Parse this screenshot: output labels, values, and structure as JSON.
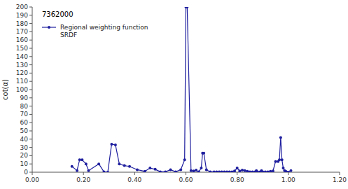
{
  "chart_data": {
    "type": "line",
    "annotation": "7362000",
    "y_label": "cot(α)",
    "legend": "upper left",
    "grid": false,
    "marker": "circle",
    "x": [
      0.155,
      0.175,
      0.185,
      0.195,
      0.21,
      0.22,
      0.26,
      0.28,
      0.295,
      0.31,
      0.325,
      0.34,
      0.36,
      0.38,
      0.41,
      0.44,
      0.46,
      0.48,
      0.5,
      0.52,
      0.54,
      0.56,
      0.58,
      0.595,
      0.6,
      0.605,
      0.62,
      0.63,
      0.64,
      0.65,
      0.66,
      0.665,
      0.67,
      0.68,
      0.695,
      0.71,
      0.72,
      0.73,
      0.74,
      0.75,
      0.76,
      0.77,
      0.78,
      0.79,
      0.8,
      0.81,
      0.82,
      0.83,
      0.84,
      0.85,
      0.86,
      0.87,
      0.875,
      0.88,
      0.89,
      0.895,
      0.9,
      0.91,
      0.92,
      0.93,
      0.94,
      0.95,
      0.96,
      0.965,
      0.97,
      0.975,
      0.98,
      0.985,
      0.99,
      0.995,
      1.0,
      1.01
    ],
    "series": [
      {
        "name": "Regional weighting function\nSRDF",
        "color": "#1f1f9f",
        "values": [
          7.0,
          2.0,
          15.0,
          15.0,
          10.0,
          2.0,
          10.0,
          0.5,
          0.0,
          34.0,
          33.0,
          10.0,
          8.0,
          7.0,
          3.0,
          1.0,
          5.0,
          3.5,
          0.5,
          0.5,
          3.0,
          0.5,
          3.0,
          15.0,
          200.0,
          200.0,
          2.0,
          1.5,
          2.5,
          0.5,
          5.0,
          23.0,
          23.0,
          3.0,
          0.5,
          0.5,
          0.5,
          0.5,
          0.5,
          0.5,
          0.5,
          0.5,
          0.5,
          1.5,
          5.0,
          1.5,
          2.5,
          2.0,
          1.0,
          0.5,
          0.5,
          0.5,
          2.0,
          0.5,
          0.5,
          2.0,
          0.5,
          0.5,
          0.5,
          1.0,
          1.5,
          13.0,
          13.0,
          15.0,
          42.0,
          15.0,
          5.0,
          2.0,
          1.0,
          0.0,
          0.0,
          2.0
        ]
      }
    ],
    "xlim": [
      0.0,
      1.2
    ],
    "xticks": [
      {
        "value": 0.0,
        "label": "0.00"
      },
      {
        "value": 0.2,
        "label": "0.20"
      },
      {
        "value": 0.4,
        "label": "0.40"
      },
      {
        "value": 0.6,
        "label": "0.60"
      },
      {
        "value": 0.8,
        "label": "0.80"
      },
      {
        "value": 1.0,
        "label": "1.00"
      },
      {
        "value": 1.2,
        "label": "1.20"
      }
    ],
    "ylim": [
      0,
      200
    ],
    "yticks": [
      0,
      10,
      20,
      30,
      40,
      50,
      60,
      70,
      80,
      90,
      100,
      110,
      120,
      130,
      140,
      150,
      160,
      170,
      180,
      190,
      200
    ]
  }
}
